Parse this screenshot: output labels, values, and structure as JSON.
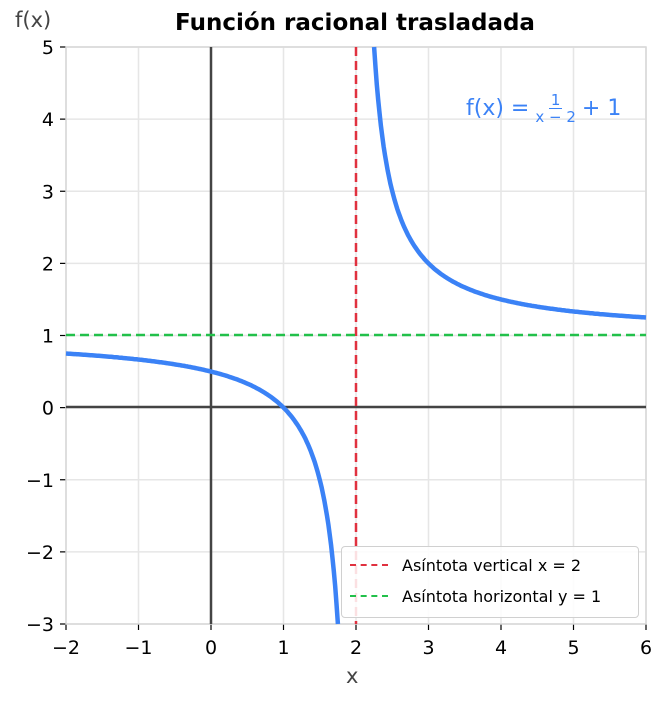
{
  "chart_data": {
    "type": "line",
    "title": "Función racional trasladada",
    "xlabel": "x",
    "ylabel": "f(x)",
    "xlim": [
      -2,
      6
    ],
    "ylim": [
      -3,
      5
    ],
    "xticks": [
      "−2",
      "−1",
      "0",
      "1",
      "2",
      "3",
      "4",
      "5",
      "6"
    ],
    "yticks": [
      "5",
      "4",
      "3",
      "2",
      "1",
      "0",
      "−1",
      "−2",
      "−3"
    ],
    "grid": true,
    "function": "f(x) = 1/(x-2) + 1",
    "series": [
      {
        "name": "f(x) = 1/(x−2) + 1",
        "color": "#3b82f6",
        "style": "solid",
        "points_left": [
          [
            -2,
            0.75
          ],
          [
            -1,
            0.667
          ],
          [
            0,
            0.5
          ],
          [
            1,
            0
          ],
          [
            1.5,
            -1
          ],
          [
            1.75,
            -3
          ]
        ],
        "points_right": [
          [
            2.25,
            5
          ],
          [
            2.5,
            3
          ],
          [
            3,
            2
          ],
          [
            4,
            1.5
          ],
          [
            5,
            1.333
          ],
          [
            6,
            1.25
          ]
        ]
      },
      {
        "name": "Asíntota vertical x = 2",
        "color": "#e0313f",
        "style": "dashed",
        "x": 2
      },
      {
        "name": "Asíntota horizontal y = 1",
        "color": "#22c04a",
        "style": "dashed",
        "y": 1
      }
    ],
    "legend_position": "lower right",
    "annotation": "f(x) = 1/(x−2) + 1"
  },
  "title": "Función racional trasladada",
  "xlabel": "x",
  "ylabel": "f(x)",
  "legend": {
    "vertical": "Asíntota vertical x = 2",
    "horizontal": "Asíntota horizontal y = 1"
  },
  "formula": {
    "lhs": "f(x) =",
    "num": "1",
    "den": "x − 2",
    "rhs": "+ 1"
  },
  "colors": {
    "curve": "#3b82f6",
    "vertical": "#e0313f",
    "horizontal": "#22c04a",
    "axis": "#444444",
    "grid": "#e6e6e6"
  }
}
